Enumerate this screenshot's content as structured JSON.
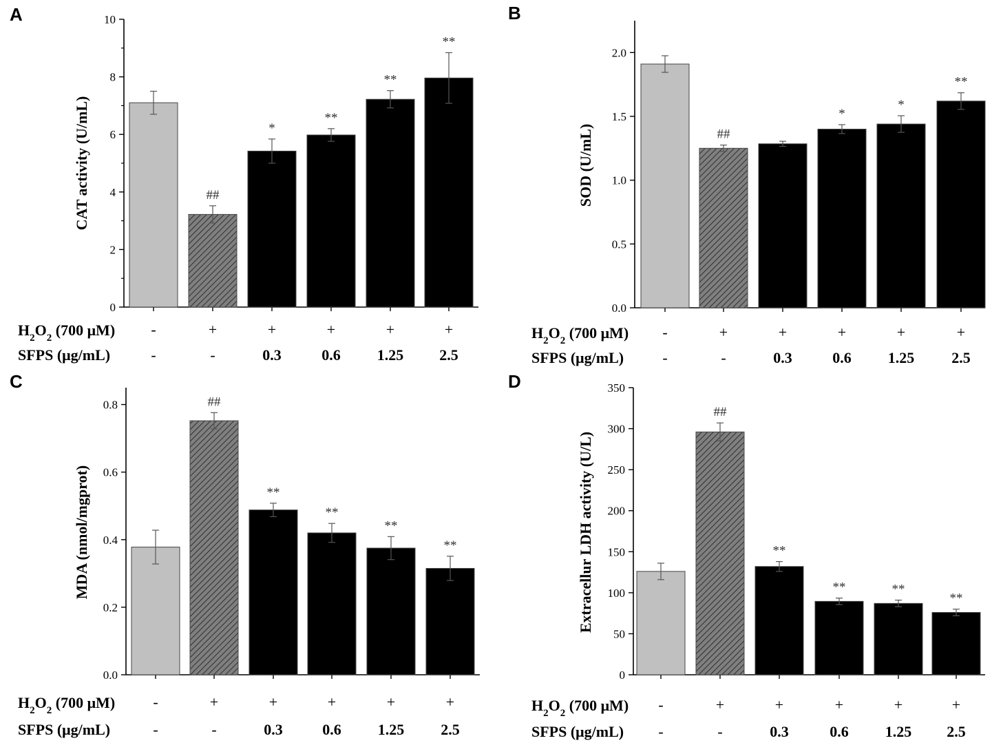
{
  "chart_data": [
    {
      "id": "A",
      "type": "bar",
      "panel_letter": "A",
      "ylabel": "CAT activity (U/mL)",
      "ylim": [
        0,
        10
      ],
      "yticks": [
        "0",
        "2",
        "4",
        "6",
        "8",
        "10"
      ],
      "minor_ticks": true,
      "values": [
        7.1,
        3.22,
        5.42,
        5.98,
        7.22,
        7.96
      ],
      "errors": [
        0.4,
        0.3,
        0.42,
        0.22,
        0.3,
        0.88
      ],
      "significance": [
        "",
        "##",
        "*",
        "**",
        "**",
        "**"
      ],
      "styles": [
        "control",
        "model",
        "treatment",
        "treatment",
        "treatment",
        "treatment"
      ],
      "row1": {
        "label": "H2O2 (700 μM)",
        "values": [
          "-",
          "+",
          "+",
          "+",
          "+",
          "+"
        ]
      },
      "row2": {
        "label": "SFPS (μg/mL)",
        "values": [
          "-",
          "-",
          "0.3",
          "0.6",
          "1.25",
          "2.5"
        ]
      }
    },
    {
      "id": "B",
      "type": "bar",
      "panel_letter": "B",
      "ylabel": "SOD (U/mL)",
      "ylim": [
        0,
        2.25
      ],
      "yticks": [
        "0.0",
        "0.5",
        "1.0",
        "1.5",
        "2.0"
      ],
      "minor_ticks": false,
      "values": [
        1.91,
        1.25,
        1.285,
        1.4,
        1.44,
        1.62
      ],
      "errors": [
        0.065,
        0.025,
        0.02,
        0.035,
        0.065,
        0.065
      ],
      "significance": [
        "",
        "##",
        "",
        "*",
        "*",
        "**"
      ],
      "styles": [
        "control",
        "model",
        "treatment",
        "treatment",
        "treatment",
        "treatment"
      ],
      "row1": {
        "label": "H2O2 (700 μM)",
        "values": [
          "-",
          "+",
          "+",
          "+",
          "+",
          "+"
        ]
      },
      "row2": {
        "label": "SFPS (μg/mL)",
        "values": [
          "-",
          "-",
          "0.3",
          "0.6",
          "1.25",
          "2.5"
        ]
      }
    },
    {
      "id": "C",
      "type": "bar",
      "panel_letter": "C",
      "ylabel": "MDA (nmol/mgprot)",
      "ylim": [
        0,
        0.85
      ],
      "yticks": [
        "0.0",
        "0.2",
        "0.4",
        "0.6",
        "0.8"
      ],
      "minor_ticks": false,
      "values": [
        0.378,
        0.752,
        0.488,
        0.42,
        0.375,
        0.315
      ],
      "errors": [
        0.05,
        0.024,
        0.02,
        0.028,
        0.034,
        0.036
      ],
      "significance": [
        "",
        "##",
        "**",
        "**",
        "**",
        "**"
      ],
      "styles": [
        "control",
        "model",
        "treatment",
        "treatment",
        "treatment",
        "treatment"
      ],
      "row1": {
        "label": "H2O2 (700 μM)",
        "values": [
          "-",
          "+",
          "+",
          "+",
          "+",
          "+"
        ]
      },
      "row2": {
        "label": "SFPS (μg/mL)",
        "values": [
          "-",
          "-",
          "0.3",
          "0.6",
          "1.25",
          "2.5"
        ]
      }
    },
    {
      "id": "D",
      "type": "bar",
      "panel_letter": "D",
      "ylabel": "Extracellur LDH activity (U/L)",
      "ylim": [
        0,
        350
      ],
      "yticks": [
        "0",
        "50",
        "100",
        "150",
        "200",
        "250",
        "300",
        "350"
      ],
      "minor_ticks": false,
      "values": [
        126,
        296,
        132,
        89.5,
        87,
        76
      ],
      "errors": [
        10,
        11,
        6,
        4,
        4,
        4
      ],
      "significance": [
        "",
        "##",
        "**",
        "**",
        "**",
        "**"
      ],
      "styles": [
        "control",
        "model",
        "treatment",
        "treatment",
        "treatment",
        "treatment"
      ],
      "row1": {
        "label": "H2O2 (700 μM)",
        "values": [
          "-",
          "+",
          "+",
          "+",
          "+",
          "+"
        ]
      },
      "row2": {
        "label": "SFPS (μg/mL)",
        "values": [
          "-",
          "-",
          "0.3",
          "0.6",
          "1.25",
          "2.5"
        ]
      }
    }
  ],
  "colors": {
    "control": "#c0c0c0",
    "model": "#808080",
    "treatment": "#000000",
    "significance": "#333333"
  }
}
